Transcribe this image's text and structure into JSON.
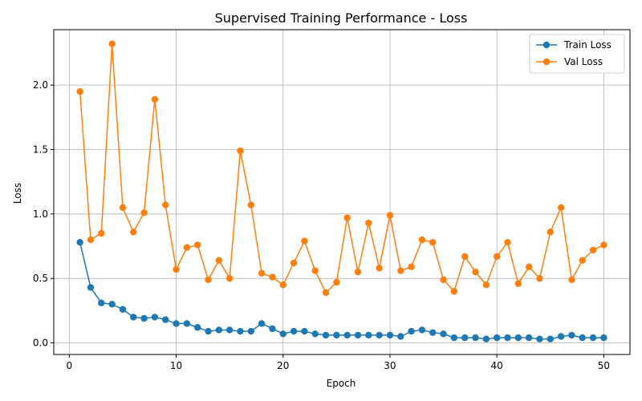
{
  "chart_data": {
    "type": "line",
    "title": "Supervised Training Performance - Loss",
    "xlabel": "Epoch",
    "ylabel": "Loss",
    "xlim": [
      -1.45,
      52.45
    ],
    "ylim": [
      -0.09,
      2.43
    ],
    "xticks": [
      0,
      10,
      20,
      30,
      40,
      50
    ],
    "yticks": [
      0.0,
      0.5,
      1.0,
      1.5,
      2.0
    ],
    "ytick_labels": [
      "0.0",
      "0.5",
      "1.0",
      "1.5",
      "2.0"
    ],
    "grid": true,
    "legend": "top-right",
    "x": [
      1,
      2,
      3,
      4,
      5,
      6,
      7,
      8,
      9,
      10,
      11,
      12,
      13,
      14,
      15,
      16,
      17,
      18,
      19,
      20,
      21,
      22,
      23,
      24,
      25,
      26,
      27,
      28,
      29,
      30,
      31,
      32,
      33,
      34,
      35,
      36,
      37,
      38,
      39,
      40,
      41,
      42,
      43,
      44,
      45,
      46,
      47,
      48,
      49,
      50
    ],
    "series": [
      {
        "name": "Train Loss",
        "color": "#1f77b4",
        "values": [
          0.78,
          0.43,
          0.31,
          0.3,
          0.26,
          0.2,
          0.19,
          0.2,
          0.18,
          0.15,
          0.15,
          0.12,
          0.09,
          0.1,
          0.1,
          0.09,
          0.09,
          0.15,
          0.11,
          0.07,
          0.09,
          0.09,
          0.07,
          0.06,
          0.06,
          0.06,
          0.06,
          0.06,
          0.06,
          0.06,
          0.05,
          0.09,
          0.1,
          0.08,
          0.07,
          0.04,
          0.04,
          0.04,
          0.03,
          0.04,
          0.04,
          0.04,
          0.04,
          0.03,
          0.03,
          0.05,
          0.06,
          0.04,
          0.04,
          0.04
        ]
      },
      {
        "name": "Val Loss",
        "color": "#ff7f0e",
        "values": [
          1.95,
          0.8,
          0.85,
          2.32,
          1.05,
          0.86,
          1.01,
          1.89,
          1.07,
          0.57,
          0.74,
          0.76,
          0.49,
          0.64,
          0.5,
          1.49,
          1.07,
          0.54,
          0.51,
          0.45,
          0.62,
          0.79,
          0.56,
          0.39,
          0.47,
          0.97,
          0.55,
          0.93,
          0.58,
          0.99,
          0.56,
          0.59,
          0.8,
          0.78,
          0.49,
          0.4,
          0.67,
          0.55,
          0.45,
          0.67,
          0.78,
          0.46,
          0.59,
          0.5,
          0.86,
          1.05,
          0.49,
          0.64,
          0.72,
          0.76
        ]
      }
    ]
  }
}
